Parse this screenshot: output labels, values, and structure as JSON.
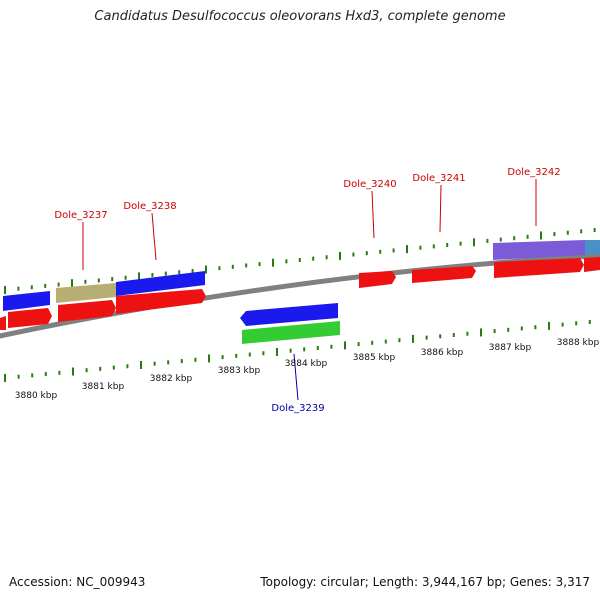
{
  "title": "Candidatus Desulfococcus oleovorans Hxd3, complete genome",
  "footer": {
    "accession": "Accession: NC_009943",
    "summary": "Topology: circular; Length: 3,944,167 bp; Genes: 3,317"
  },
  "colors": {
    "backbone": "#808080",
    "tick": "#2a7a12",
    "forward_label": "#cc0000",
    "reverse_label": "#0000aa",
    "cds": "#ee1111",
    "gene_blue": "#1a1aee",
    "gene_olive": "#b8ad72",
    "gene_purple": "#7b5bd6",
    "gene_green": "#33cc33",
    "gene_steel": "#4a90c8"
  },
  "ruler": {
    "labels": [
      "3880 kbp",
      "3881 kbp",
      "3882 kbp",
      "3883 kbp",
      "3884 kbp",
      "3885 kbp",
      "3886 kbp",
      "3887 kbp",
      "3888 kbp"
    ]
  },
  "genes": [
    {
      "name": "Dole_3237",
      "strand": "forward"
    },
    {
      "name": "Dole_3238",
      "strand": "forward"
    },
    {
      "name": "Dole_3239",
      "strand": "reverse"
    },
    {
      "name": "Dole_3240",
      "strand": "forward"
    },
    {
      "name": "Dole_3241",
      "strand": "forward"
    },
    {
      "name": "Dole_3242",
      "strand": "forward"
    }
  ]
}
